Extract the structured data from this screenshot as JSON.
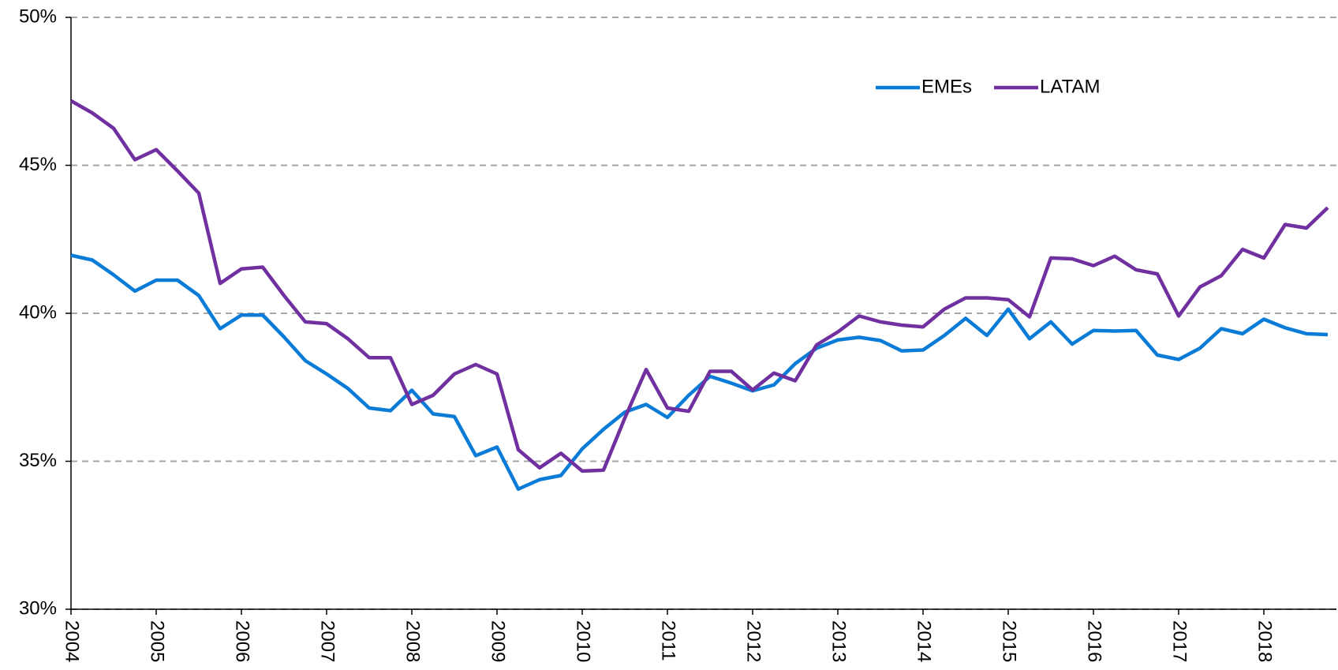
{
  "chart_data": {
    "type": "line",
    "categories": [
      "2004",
      null,
      null,
      null,
      "2005",
      null,
      null,
      null,
      "2006",
      null,
      null,
      null,
      "2007",
      null,
      null,
      null,
      "2008",
      null,
      null,
      null,
      "2009",
      null,
      null,
      null,
      "2010",
      null,
      null,
      null,
      "2011",
      null,
      null,
      null,
      "2012",
      null,
      null,
      null,
      "2013",
      null,
      null,
      null,
      "2014",
      null,
      null,
      null,
      "2015",
      null,
      null,
      null,
      "2016",
      null,
      null,
      null,
      "2017",
      null,
      null,
      null,
      "2018",
      null,
      null,
      null
    ],
    "series": [
      {
        "name": "EMEs",
        "color": "#0a7bd6",
        "values": [
          41.96,
          41.8,
          41.3,
          40.75,
          41.12,
          41.12,
          40.6,
          39.48,
          39.94,
          39.94,
          39.2,
          38.4,
          37.95,
          37.46,
          36.8,
          36.71,
          37.4,
          36.6,
          36.51,
          35.19,
          35.48,
          34.06,
          34.38,
          34.52,
          35.42,
          36.08,
          36.66,
          36.92,
          36.48,
          37.23,
          37.87,
          37.64,
          37.38,
          37.58,
          38.3,
          38.82,
          39.1,
          39.19,
          39.08,
          38.73,
          38.76,
          39.25,
          39.83,
          39.25,
          40.14,
          39.14,
          39.71,
          38.96,
          39.42,
          39.4,
          39.42,
          38.59,
          38.44,
          38.82,
          39.48,
          39.31,
          39.8,
          39.51,
          39.31,
          39.28
        ]
      },
      {
        "name": "LATAM",
        "color": "#7030a0",
        "values": [
          47.18,
          46.77,
          46.25,
          45.19,
          45.53,
          44.81,
          44.06,
          41.01,
          41.5,
          41.56,
          40.6,
          39.71,
          39.65,
          39.14,
          38.5,
          38.5,
          36.92,
          37.23,
          37.95,
          38.27,
          37.95,
          35.39,
          34.78,
          35.27,
          34.67,
          34.7,
          36.46,
          38.1,
          36.8,
          36.69,
          38.04,
          38.04,
          37.41,
          37.98,
          37.72,
          38.93,
          39.37,
          39.91,
          39.71,
          39.6,
          39.54,
          40.14,
          40.52,
          40.52,
          40.46,
          39.88,
          41.87,
          41.84,
          41.61,
          41.93,
          41.47,
          41.33,
          39.91,
          40.89,
          41.27,
          42.16,
          41.87,
          43.0,
          42.88,
          43.57
        ]
      }
    ],
    "ylim": [
      30,
      50
    ],
    "yticks": [
      {
        "value": 30,
        "label": "30%"
      },
      {
        "value": 35,
        "label": "35%"
      },
      {
        "value": 40,
        "label": "40%"
      },
      {
        "value": 45,
        "label": "45%"
      },
      {
        "value": 50,
        "label": "50%"
      }
    ],
    "grid": true
  }
}
